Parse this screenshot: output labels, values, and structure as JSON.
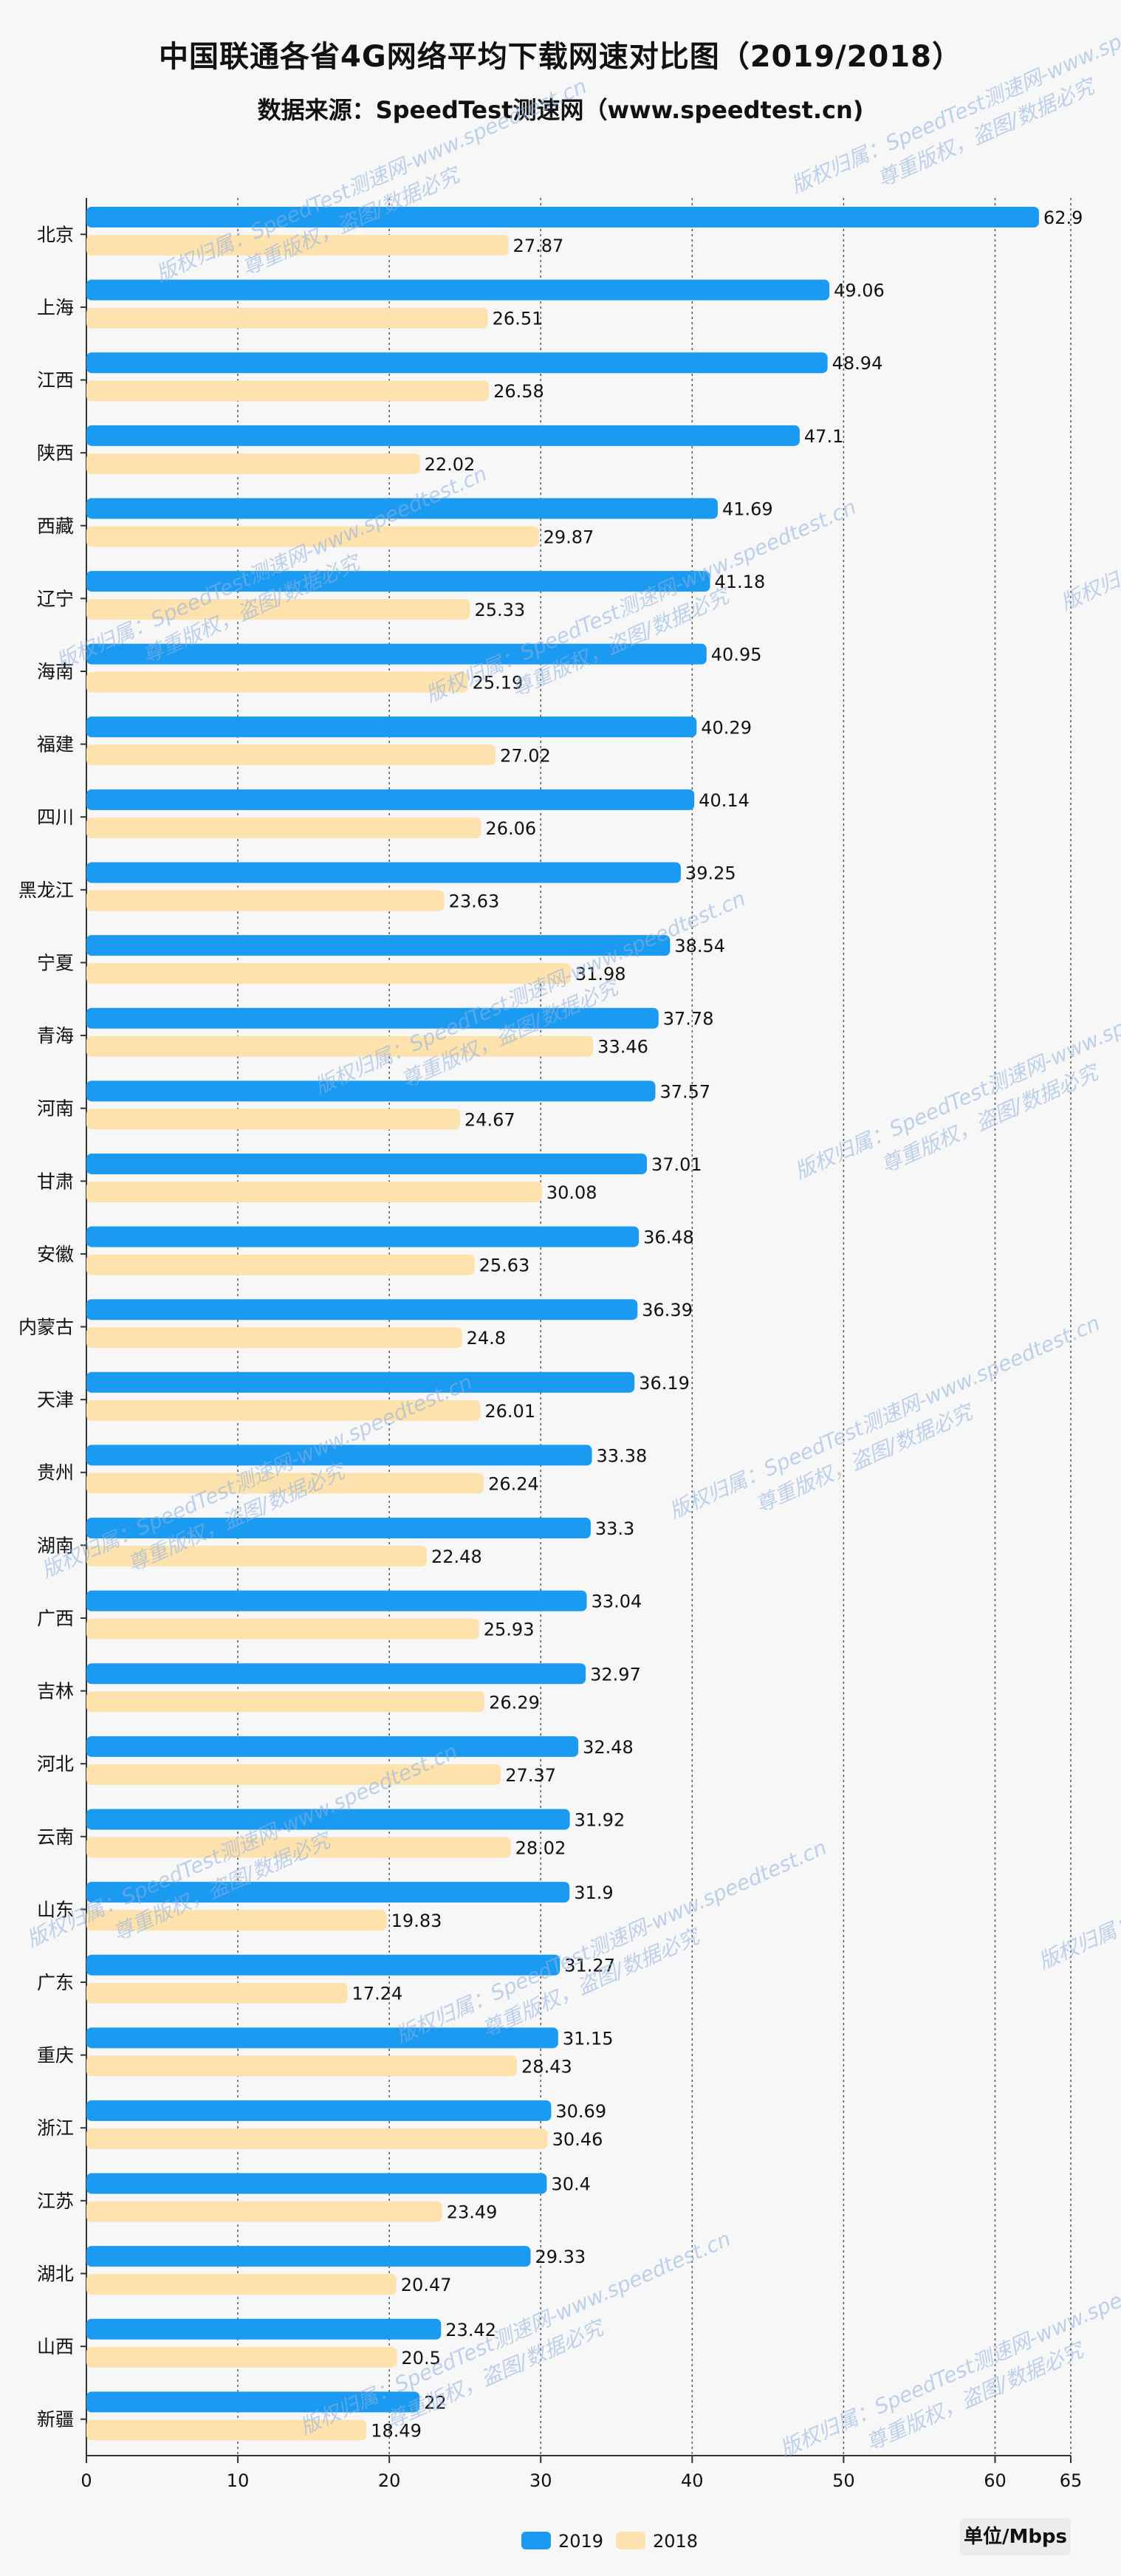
{
  "header": {
    "title": "中国联通各省4G网络平均下载网速对比图（2019/2018）",
    "subtitle": "数据来源：SpeedTest测速网（www.speedtest.cn)"
  },
  "unit_label": "单位/Mbps",
  "watermark": {
    "line1": "版权归属：SpeedTest测速网-www.speedtest.cn",
    "line2": "尊重版权，盗图/数据必究"
  },
  "colors": {
    "2019": "#1a9af0",
    "2018": "#fde2ad"
  },
  "chart_data": {
    "type": "bar",
    "orientation": "horizontal",
    "title": "中国联通各省4G网络平均下载网速对比图（2019/2018）",
    "xlabel": "单位/Mbps",
    "ylabel": "",
    "xlim": [
      0,
      65
    ],
    "xticks": [
      0,
      10,
      20,
      30,
      40,
      50,
      60,
      65
    ],
    "grid": "vertical-dashed",
    "legend": "bottom-center",
    "categories": [
      "北京",
      "上海",
      "江西",
      "陕西",
      "西藏",
      "辽宁",
      "海南",
      "福建",
      "四川",
      "黑龙江",
      "宁夏",
      "青海",
      "河南",
      "甘肃",
      "安徽",
      "内蒙古",
      "天津",
      "贵州",
      "湖南",
      "广西",
      "吉林",
      "河北",
      "云南",
      "山东",
      "广东",
      "重庆",
      "浙江",
      "江苏",
      "湖北",
      "山西",
      "新疆"
    ],
    "series": [
      {
        "name": "2019",
        "values": [
          62.9,
          49.06,
          48.94,
          47.1,
          41.69,
          41.18,
          40.95,
          40.29,
          40.14,
          39.25,
          38.54,
          37.78,
          37.57,
          37.01,
          36.48,
          36.39,
          36.19,
          33.38,
          33.3,
          33.04,
          32.97,
          32.48,
          31.92,
          31.9,
          31.27,
          31.15,
          30.69,
          30.4,
          29.33,
          23.42,
          22
        ]
      },
      {
        "name": "2018",
        "values": [
          27.87,
          26.51,
          26.58,
          22.02,
          29.87,
          25.33,
          25.19,
          27.02,
          26.06,
          23.63,
          31.98,
          33.46,
          24.67,
          30.08,
          25.63,
          24.8,
          26.01,
          26.24,
          22.48,
          25.93,
          26.29,
          27.37,
          28.02,
          19.83,
          17.24,
          28.43,
          30.46,
          23.49,
          20.47,
          20.5,
          18.49
        ]
      }
    ]
  }
}
